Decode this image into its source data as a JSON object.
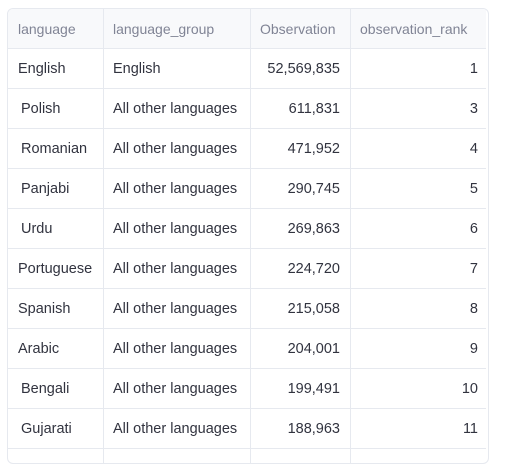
{
  "table": {
    "columns": [
      "language",
      "language_group",
      "Observation",
      "observation_rank"
    ],
    "rows": [
      {
        "language": "English",
        "language_group": "English",
        "observation": "52,569,835",
        "rank": "1"
      },
      {
        "language": "Polish",
        "language_group": "All other languages",
        "observation": "611,831",
        "rank": "3"
      },
      {
        "language": "Romanian",
        "language_group": "All other languages",
        "observation": "471,952",
        "rank": "4"
      },
      {
        "language": "Panjabi",
        "language_group": "All other languages",
        "observation": "290,745",
        "rank": "5"
      },
      {
        "language": "Urdu",
        "language_group": "All other languages",
        "observation": "269,863",
        "rank": "6"
      },
      {
        "language": "Portuguese",
        "language_group": "All other languages",
        "observation": "224,720",
        "rank": "7"
      },
      {
        "language": "Spanish",
        "language_group": "All other languages",
        "observation": "215,058",
        "rank": "8"
      },
      {
        "language": "Arabic",
        "language_group": "All other languages",
        "observation": "204,001",
        "rank": "9"
      },
      {
        "language": "Bengali",
        "language_group": "All other languages",
        "observation": "199,491",
        "rank": "10"
      },
      {
        "language": "Gujarati",
        "language_group": "All other languages",
        "observation": "188,963",
        "rank": "11"
      }
    ]
  },
  "colors": {
    "border": "#e6e9ef",
    "header_bg": "#f8f9fb",
    "header_text": "#808495",
    "cell_text": "#31333f"
  }
}
